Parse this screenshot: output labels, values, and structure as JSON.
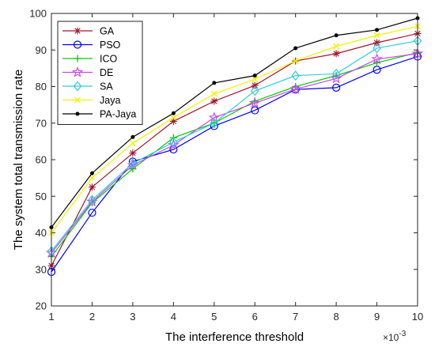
{
  "chart_data": {
    "type": "line",
    "title": "",
    "xlabel": "The interference threshold",
    "ylabel": "The system total transmission rate",
    "x_multiplier": "×10",
    "x_multiplier_exp": "-3",
    "x": [
      1,
      2,
      3,
      4,
      5,
      6,
      7,
      8,
      9,
      10
    ],
    "xlim": [
      1,
      10
    ],
    "ylim": [
      20,
      100
    ],
    "yticks": [
      20,
      30,
      40,
      50,
      60,
      70,
      80,
      90,
      100
    ],
    "legend_position": "top-left",
    "series": [
      {
        "name": "GA",
        "color": "#A2142F",
        "marker": "asterisk",
        "values": [
          31.0,
          52.5,
          61.8,
          70.5,
          76.0,
          80.3,
          87.0,
          89.0,
          92.0,
          94.5
        ]
      },
      {
        "name": "PSO",
        "color": "#0000FF",
        "marker": "circle",
        "values": [
          29.3,
          45.5,
          59.5,
          62.8,
          69.2,
          73.5,
          79.2,
          79.7,
          84.6,
          88.2
        ]
      },
      {
        "name": "ICO",
        "color": "#00CC00",
        "marker": "plus",
        "values": [
          33.5,
          48.2,
          57.5,
          66.0,
          70.0,
          76.0,
          80.0,
          83.0,
          86.5,
          89.3
        ]
      },
      {
        "name": "DE",
        "color": "#CC44EE",
        "marker": "pentagram",
        "values": [
          34.5,
          48.5,
          58.5,
          64.0,
          71.5,
          75.5,
          79.3,
          82.2,
          87.5,
          89.0
        ]
      },
      {
        "name": "SA",
        "color": "#33CCDD",
        "marker": "diamond",
        "values": [
          35.0,
          49.0,
          59.0,
          64.8,
          70.0,
          78.8,
          83.0,
          83.5,
          90.5,
          92.5
        ]
      },
      {
        "name": "Jaya",
        "color": "#F2F200",
        "marker": "x",
        "values": [
          40.0,
          55.0,
          64.5,
          71.5,
          78.0,
          82.0,
          87.0,
          91.0,
          94.0,
          96.5
        ]
      },
      {
        "name": "PA-Jaya",
        "color": "#000000",
        "marker": "dot",
        "values": [
          41.5,
          56.3,
          66.2,
          72.7,
          81.0,
          83.0,
          90.5,
          94.0,
          95.5,
          98.7
        ]
      }
    ]
  }
}
